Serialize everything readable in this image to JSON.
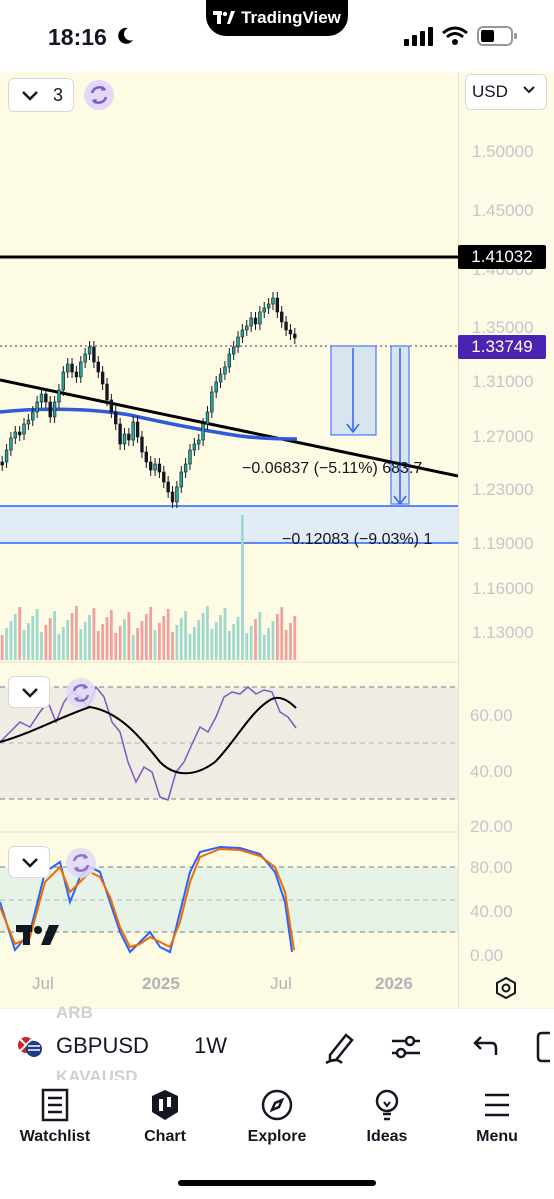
{
  "status": {
    "time": "18:16",
    "app_pill": "TradingView"
  },
  "toolbar": {
    "indicator_count": "3",
    "currency": "USD"
  },
  "price_axis": {
    "labels": [
      "1.50000",
      "1.45000",
      "1.40000",
      "1.35000",
      "1.31000",
      "1.27000",
      "1.23000",
      "1.19000",
      "1.16000",
      "1.13000"
    ],
    "black_line_price": "1.41032",
    "current_price": "1.33749"
  },
  "annotations": {
    "measure_1": "−0.06837 (−5.11%) 683.7",
    "measure_2": "−0.12083 (−9.03%) 1"
  },
  "rsi_axis": {
    "labels": [
      "60.00",
      "40.00",
      "20.00"
    ]
  },
  "stoch_axis": {
    "labels": [
      "80.00",
      "40.00",
      "0.00"
    ]
  },
  "time_axis": {
    "labels": [
      "Jul",
      "2025",
      "Jul",
      "2026"
    ]
  },
  "symbol_bar": {
    "symbol": "GBPUSD",
    "timeframe": "1W",
    "ghost_above": "ARB",
    "ghost_below": "KAVAUSD"
  },
  "nav": {
    "items": [
      "Watchlist",
      "Chart",
      "Explore",
      "Ideas",
      "Menu"
    ]
  },
  "colors": {
    "accent": "#2962ff",
    "price_pill": "#4a24b0",
    "up": "#26a69a",
    "down": "#ef5350",
    "rsi": "#7e57c2"
  }
}
